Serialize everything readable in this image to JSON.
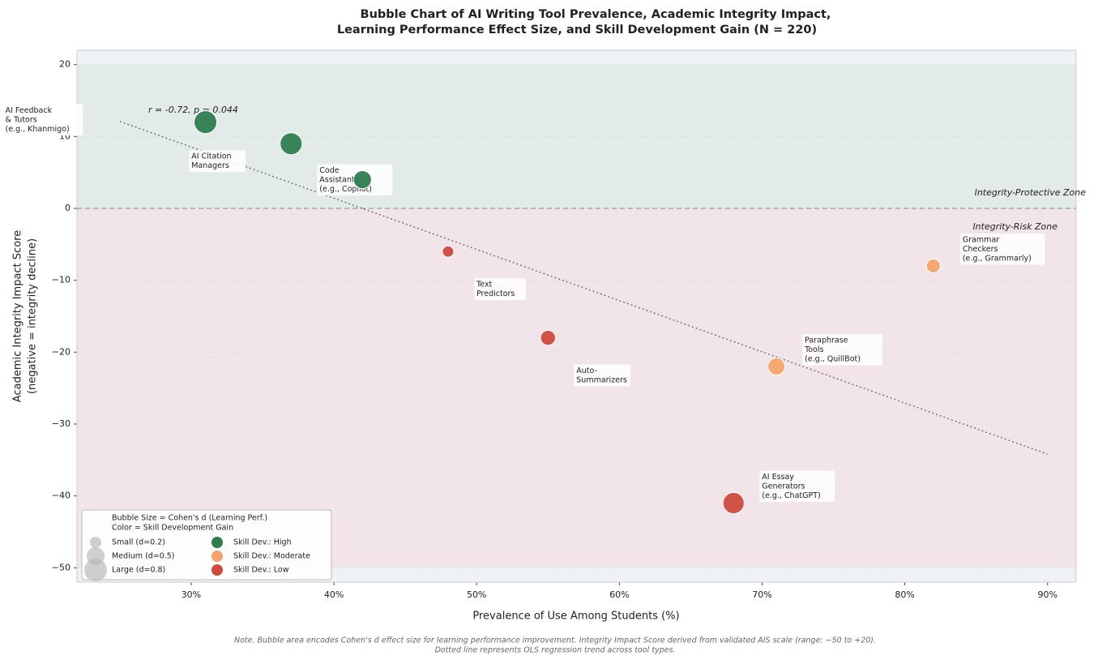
{
  "chart_data": {
    "type": "bubble",
    "title": [
      "Bubble Chart of AI Writing Tool Prevalence, Academic Integrity Impact,",
      "Learning Performance Effect Size, and Skill Development Gain (N = 220)"
    ],
    "xlabel": "Prevalence of Use Among Students (%)",
    "ylabel": [
      "Academic Integrity Impact Score",
      "(negative = integrity decline)"
    ],
    "note": [
      "Note. Bubble area encodes Cohen's d effect size for learning performance improvement. Integrity Impact Score derived from validated AIS scale (range: −50 to +20).",
      "Dotted line represents OLS regression trend across tool types."
    ],
    "xlim": [
      22,
      92
    ],
    "ylim": [
      -52,
      22
    ],
    "xticks": [
      {
        "value": 30,
        "label": "30%"
      },
      {
        "value": 40,
        "label": "40%"
      },
      {
        "value": 50,
        "label": "50%"
      },
      {
        "value": 60,
        "label": "60%"
      },
      {
        "value": 70,
        "label": "70%"
      },
      {
        "value": 80,
        "label": "80%"
      },
      {
        "value": 90,
        "label": "90%"
      }
    ],
    "yticks": [
      {
        "value": -50,
        "label": "−50"
      },
      {
        "value": -40,
        "label": "−40"
      },
      {
        "value": -30,
        "label": "−30"
      },
      {
        "value": -20,
        "label": "−20"
      },
      {
        "value": -10,
        "label": "−10"
      },
      0,
      10,
      20
    ],
    "grid": true,
    "zones": [
      {
        "name": "Integrity-Protective Zone",
        "range": [
          0,
          20
        ],
        "color": "#e3ebe8",
        "text_color": "#3a8a5c"
      },
      {
        "name": "Integrity-Risk Zone",
        "range": [
          -50,
          0
        ],
        "color": "#f2e5ea",
        "text_color": "#d05050"
      }
    ],
    "series": [
      {
        "name": "Skill Dev.: High",
        "color": "#2e7d4f",
        "x": [
          31,
          37,
          42
        ],
        "values": [
          12,
          9,
          4
        ],
        "sizes": [
          0.8,
          0.75,
          0.5
        ],
        "labels": [
          [
            "AI Feedback",
            "& Tutors",
            "(e.g., Khanmigo)"
          ],
          [
            "AI Citation",
            "Managers"
          ],
          [
            "Code",
            "Assistants",
            "(e.g., Copilot)"
          ]
        ]
      },
      {
        "name": "Skill Dev.: Moderate",
        "color": "#f4a46a",
        "x": [
          82,
          71
        ],
        "values": [
          -8,
          -22
        ],
        "sizes": [
          0.3,
          0.45
        ],
        "labels": [
          [
            "Grammar",
            "Checkers",
            "(e.g., Grammarly)"
          ],
          [
            "Paraphrase",
            "Tools",
            "(e.g., QuillBot)"
          ]
        ]
      },
      {
        "name": "Skill Dev.: Low",
        "color": "#d04b3d",
        "x": [
          48,
          55,
          68
        ],
        "values": [
          -6,
          -18,
          -41
        ],
        "sizes": [
          0.2,
          0.35,
          0.7
        ],
        "labels": [
          [
            "Text",
            "Predictors"
          ],
          [
            "Auto-",
            "Summarizers"
          ],
          [
            "AI Essay",
            "Generators",
            "(e.g., ChatGPT)"
          ]
        ]
      }
    ],
    "trend": {
      "x": [
        25,
        90
      ],
      "values": [
        12.1,
        -34.2
      ],
      "annotation": "r = -0.72, p = 0.044"
    },
    "legend": {
      "corner": "lower left",
      "size_title": "Bubble Size = Cohen's d (Learning Perf.)",
      "color_title": "Color = Skill Development Gain",
      "sizes": [
        {
          "label": "Small (d=0.2)",
          "value": 0.2
        },
        {
          "label": "Medium (d=0.5)",
          "value": 0.5
        },
        {
          "label": "Large (d=0.8)",
          "value": 0.8
        }
      ]
    }
  }
}
